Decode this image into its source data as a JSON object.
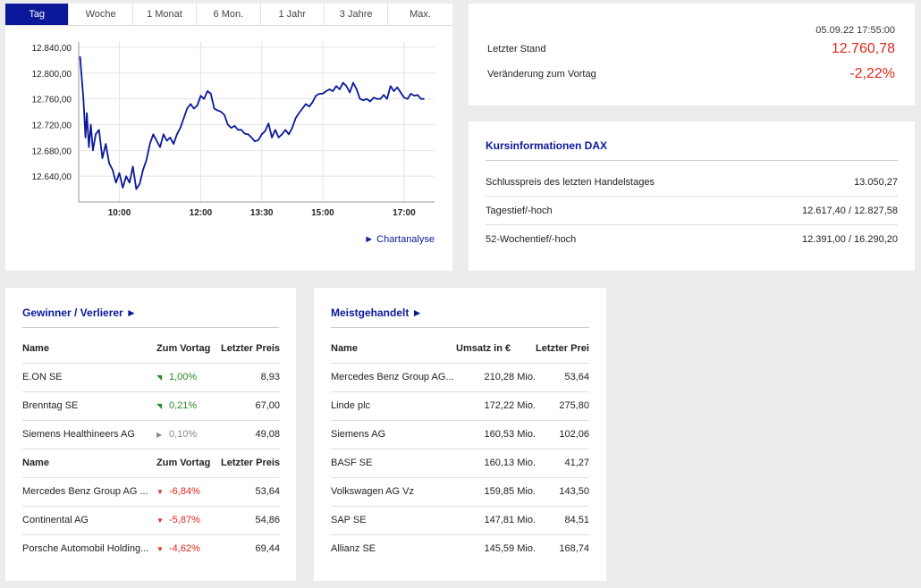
{
  "tabs": [
    "Tag",
    "Woche",
    "1 Monat",
    "6 Mon.",
    "1 Jahr",
    "3 Jahre",
    "Max."
  ],
  "active_tab": 0,
  "chart_link": "► Chartanalyse",
  "chart_data": {
    "type": "line",
    "title": "",
    "xlabel": "",
    "ylabel": "",
    "x_ticks": [
      "10:00",
      "12:00",
      "13:30",
      "15:00",
      "17:00"
    ],
    "y_ticks": [
      "12.640,00",
      "12.680,00",
      "12.720,00",
      "12.760,00",
      "12.800,00",
      "12.840,00"
    ],
    "ylim": [
      12600,
      12840
    ],
    "xlim": [
      "09:00",
      "17:45"
    ],
    "grid": true,
    "series": [
      {
        "color": "#0b1899",
        "x": [
          "09:02",
          "09:04",
          "09:07",
          "09:10",
          "09:12",
          "09:15",
          "09:18",
          "09:21",
          "09:25",
          "09:30",
          "09:35",
          "09:40",
          "09:45",
          "09:50",
          "09:55",
          "10:00",
          "10:05",
          "10:10",
          "10:15",
          "10:20",
          "10:25",
          "10:30",
          "10:35",
          "10:40",
          "10:45",
          "10:50",
          "10:55",
          "11:00",
          "11:05",
          "11:10",
          "11:15",
          "11:20",
          "11:25",
          "11:30",
          "11:35",
          "11:40",
          "11:45",
          "11:50",
          "11:55",
          "12:00",
          "12:05",
          "12:10",
          "12:15",
          "12:20",
          "12:25",
          "12:30",
          "12:35",
          "12:40",
          "12:45",
          "12:50",
          "12:55",
          "13:00",
          "13:05",
          "13:10",
          "13:15",
          "13:20",
          "13:25",
          "13:30",
          "13:35",
          "13:40",
          "13:45",
          "13:50",
          "13:55",
          "14:00",
          "14:05",
          "14:10",
          "14:15",
          "14:20",
          "14:25",
          "14:30",
          "14:35",
          "14:40",
          "14:45",
          "14:50",
          "14:55",
          "15:00",
          "15:05",
          "15:10",
          "15:15",
          "15:20",
          "15:25",
          "15:30",
          "15:35",
          "15:40",
          "15:45",
          "15:50",
          "15:55",
          "16:00",
          "16:05",
          "16:10",
          "16:15",
          "16:20",
          "16:25",
          "16:30",
          "16:35",
          "16:40",
          "16:45",
          "16:50",
          "16:55",
          "17:00",
          "17:05",
          "17:10",
          "17:15",
          "17:20",
          "17:25",
          "17:30"
        ],
        "y": [
          12826,
          12800,
          12760,
          12700,
          12738,
          12685,
          12720,
          12680,
          12705,
          12712,
          12668,
          12690,
          12660,
          12650,
          12630,
          12645,
          12622,
          12640,
          12630,
          12655,
          12620,
          12628,
          12650,
          12665,
          12690,
          12705,
          12695,
          12685,
          12705,
          12695,
          12700,
          12690,
          12705,
          12715,
          12730,
          12745,
          12752,
          12745,
          12750,
          12765,
          12760,
          12772,
          12768,
          12745,
          12742,
          12740,
          12735,
          12720,
          12715,
          12718,
          12712,
          12712,
          12706,
          12705,
          12700,
          12694,
          12696,
          12705,
          12710,
          12722,
          12700,
          12712,
          12700,
          12705,
          12712,
          12705,
          12715,
          12730,
          12738,
          12745,
          12752,
          12748,
          12755,
          12765,
          12768,
          12768,
          12772,
          12775,
          12772,
          12780,
          12775,
          12785,
          12780,
          12770,
          12785,
          12775,
          12760,
          12758,
          12760,
          12756,
          12762,
          12760,
          12760,
          12766,
          12760,
          12780,
          12772,
          12778,
          12770,
          12762,
          12760,
          12768,
          12765,
          12766,
          12760,
          12760
        ]
      }
    ]
  },
  "quote": {
    "date": "05.09.22 17:55:00",
    "last_label": "Letzter Stand",
    "last_value": "12.760,78",
    "change_label": "Veränderung zum Vortag",
    "change_value": "-2,22%",
    "value_color": "#e0271b"
  },
  "info": {
    "title": "Kursinformationen DAX",
    "rows": [
      {
        "label": "Schlusspreis des letzten Handelstages",
        "value": "13.050,27"
      },
      {
        "label": "Tagestief/-hoch",
        "value": "12.617,40 / 12.827,58"
      },
      {
        "label": "52-Wochentief/-hoch",
        "value": "12.391,00 / 16.290,20"
      }
    ]
  },
  "gv": {
    "title": "Gewinner / Verlierer ►",
    "headers": [
      "Name",
      "Zum Vortag",
      "Letzter Preis"
    ],
    "winners": [
      {
        "name": "E.ON SE",
        "change": "1,00%",
        "dir": "up",
        "price": "8,93"
      },
      {
        "name": "Brenntag SE",
        "change": "0,21%",
        "dir": "up",
        "price": "67,00"
      },
      {
        "name": "Siemens Healthineers AG",
        "change": "0,10%",
        "dir": "flat",
        "price": "49,08"
      }
    ],
    "losers": [
      {
        "name": "Mercedes Benz Group AG ...",
        "change": "-6,84%",
        "dir": "down",
        "price": "53,64"
      },
      {
        "name": "Continental AG",
        "change": "-5,87%",
        "dir": "down",
        "price": "54,86"
      },
      {
        "name": "Porsche Automobil Holding...",
        "change": "-4,62%",
        "dir": "down",
        "price": "69,44"
      }
    ]
  },
  "meist": {
    "title": "Meistgehandelt ►",
    "headers": [
      "Name",
      "Umsatz in €",
      "Letzter Preis"
    ],
    "rows": [
      {
        "name": "Mercedes Benz Group AG...",
        "umsatz": "210,28 Mio.",
        "price": "53,64"
      },
      {
        "name": "Linde plc",
        "umsatz": "172,22 Mio.",
        "price": "275,80"
      },
      {
        "name": "Siemens AG",
        "umsatz": "160,53 Mio.",
        "price": "102,06"
      },
      {
        "name": "BASF SE",
        "umsatz": "160,13 Mio.",
        "price": "41,27"
      },
      {
        "name": "Volkswagen AG Vz",
        "umsatz": "159,85 Mio.",
        "price": "143,50"
      },
      {
        "name": "SAP SE",
        "umsatz": "147,81 Mio.",
        "price": "84,51"
      },
      {
        "name": "Allianz SE",
        "umsatz": "145,59 Mio.",
        "price": "168,74"
      }
    ]
  },
  "colors": {
    "accent": "#0b1899",
    "up": "#2a8a2a",
    "down": "#e0271b",
    "flat": "#888888"
  },
  "arrows": {
    "up": "◥",
    "down": "▼",
    "flat": "▶"
  }
}
